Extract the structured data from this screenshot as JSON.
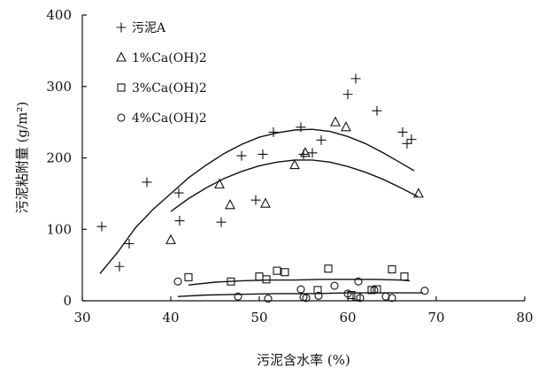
{
  "chart_data": {
    "type": "scatter",
    "xlabel": "污泥含水率 (%)",
    "ylabel": "污泥粘附量 (g/m²)",
    "xlim": [
      30,
      80
    ],
    "ylim": [
      0,
      400
    ],
    "xticks": [
      "30",
      "40",
      "50",
      "60",
      "70",
      "80"
    ],
    "yticks": [
      "0",
      "100",
      "200",
      "300",
      "400"
    ],
    "grid": false,
    "legend_position": "top-left",
    "series": [
      {
        "name": "污泥A",
        "marker": "plus",
        "points": [
          [
            32.2,
            104
          ],
          [
            34.2,
            48
          ],
          [
            35.3,
            80
          ],
          [
            37.3,
            166
          ],
          [
            40.9,
            151
          ],
          [
            41.0,
            112
          ],
          [
            45.7,
            110
          ],
          [
            48.0,
            203
          ],
          [
            49.6,
            141
          ],
          [
            50.4,
            205
          ],
          [
            51.6,
            236
          ],
          [
            54.7,
            243
          ],
          [
            55.0,
            205
          ],
          [
            56.0,
            207
          ],
          [
            57.0,
            225
          ],
          [
            60.0,
            289
          ],
          [
            60.9,
            311
          ],
          [
            63.3,
            266
          ],
          [
            66.2,
            236
          ],
          [
            66.7,
            220
          ],
          [
            67.2,
            226
          ]
        ],
        "trend": [
          [
            32.0,
            38
          ],
          [
            34.0,
            68
          ],
          [
            36.0,
            102
          ],
          [
            38.0,
            128
          ],
          [
            40.0,
            150
          ],
          [
            42.0,
            172
          ],
          [
            44.0,
            190
          ],
          [
            46.0,
            206
          ],
          [
            48.0,
            219
          ],
          [
            50.0,
            229
          ],
          [
            52.0,
            235
          ],
          [
            54.0,
            239
          ],
          [
            56.0,
            240
          ],
          [
            58.0,
            237
          ],
          [
            60.0,
            230
          ],
          [
            62.0,
            220
          ],
          [
            64.0,
            207
          ],
          [
            66.0,
            193
          ],
          [
            67.5,
            182
          ]
        ]
      },
      {
        "name": "1%Ca(OH)2",
        "marker": "triangle",
        "points": [
          [
            40.0,
            85
          ],
          [
            45.5,
            163
          ],
          [
            46.7,
            134
          ],
          [
            50.7,
            136
          ],
          [
            54.0,
            190
          ],
          [
            55.2,
            207
          ],
          [
            58.6,
            250
          ],
          [
            59.8,
            243
          ],
          [
            68.0,
            150
          ]
        ],
        "trend": [
          [
            40.0,
            125
          ],
          [
            42.0,
            143
          ],
          [
            44.0,
            158
          ],
          [
            46.0,
            171
          ],
          [
            48.0,
            181
          ],
          [
            50.0,
            189
          ],
          [
            52.0,
            194
          ],
          [
            54.0,
            197
          ],
          [
            56.0,
            197
          ],
          [
            58.0,
            194
          ],
          [
            60.0,
            188
          ],
          [
            62.0,
            180
          ],
          [
            64.0,
            170
          ],
          [
            66.0,
            158
          ],
          [
            67.9,
            146
          ]
        ]
      },
      {
        "name": "3%Ca(OH)2",
        "marker": "square",
        "points": [
          [
            42.0,
            33
          ],
          [
            46.8,
            27
          ],
          [
            50.0,
            34
          ],
          [
            50.8,
            30
          ],
          [
            52.0,
            42
          ],
          [
            52.9,
            40
          ],
          [
            56.6,
            15
          ],
          [
            57.8,
            45
          ],
          [
            60.4,
            8
          ],
          [
            61.0,
            6
          ],
          [
            62.7,
            15
          ],
          [
            63.3,
            16
          ],
          [
            65.0,
            44
          ],
          [
            66.4,
            34
          ]
        ],
        "trend": [
          [
            42.0,
            22
          ],
          [
            45.0,
            26
          ],
          [
            48.0,
            28
          ],
          [
            51.0,
            29
          ],
          [
            54.0,
            29
          ],
          [
            57.0,
            30
          ],
          [
            60.0,
            30
          ],
          [
            63.0,
            30
          ],
          [
            66.0,
            29
          ],
          [
            67.0,
            28
          ]
        ]
      },
      {
        "name": "4%Ca(OH)2",
        "marker": "circle",
        "points": [
          [
            40.8,
            27
          ],
          [
            47.6,
            6
          ],
          [
            51.0,
            3
          ],
          [
            54.7,
            16
          ],
          [
            55.0,
            5
          ],
          [
            55.3,
            4
          ],
          [
            56.7,
            7
          ],
          [
            58.5,
            21
          ],
          [
            60.0,
            10
          ],
          [
            61.2,
            27
          ],
          [
            61.4,
            4
          ],
          [
            63.0,
            15
          ],
          [
            64.3,
            6
          ],
          [
            65.0,
            4
          ],
          [
            68.7,
            14
          ]
        ],
        "trend": [
          [
            40.8,
            6
          ],
          [
            44.0,
            8
          ],
          [
            48.0,
            9
          ],
          [
            52.0,
            10
          ],
          [
            56.0,
            10
          ],
          [
            60.0,
            11
          ],
          [
            64.0,
            11
          ],
          [
            68.5,
            11
          ]
        ]
      }
    ]
  }
}
